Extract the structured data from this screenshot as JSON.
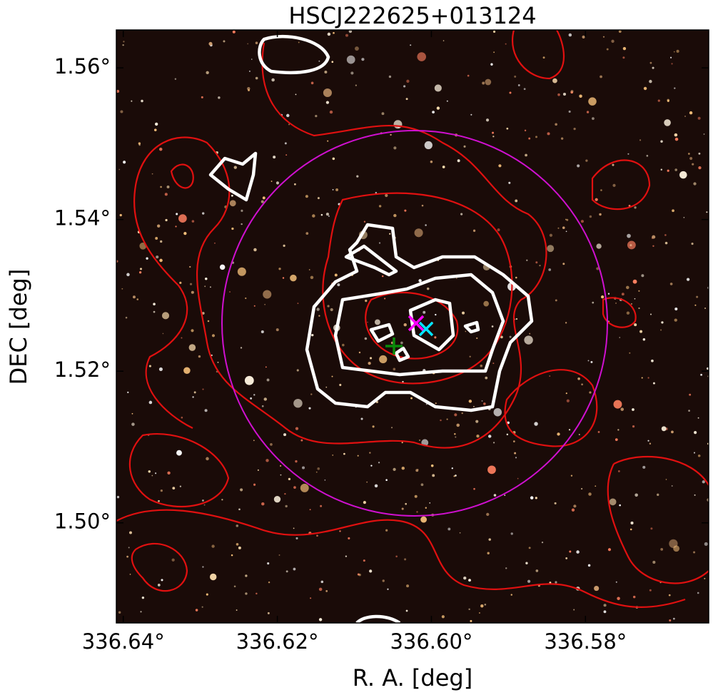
{
  "chart_data": {
    "type": "image",
    "title": "HSCJ222625+013124",
    "xlabel": "R. A. [deg]",
    "ylabel": "DEC [deg]",
    "xlim": [
      336.6409,
      336.564
    ],
    "ylim": [
      1.4868,
      1.565
    ],
    "xticks": [
      {
        "value": 336.64,
        "label": "336.64°"
      },
      {
        "value": 336.62,
        "label": "336.62°"
      },
      {
        "value": 336.6,
        "label": "336.60°"
      },
      {
        "value": 336.58,
        "label": "336.58°"
      }
    ],
    "yticks": [
      {
        "value": 1.5,
        "label": "1.50°"
      },
      {
        "value": 1.52,
        "label": "1.52°"
      },
      {
        "value": 1.54,
        "label": "1.54°"
      },
      {
        "value": 1.56,
        "label": "1.56°"
      }
    ]
  }
}
